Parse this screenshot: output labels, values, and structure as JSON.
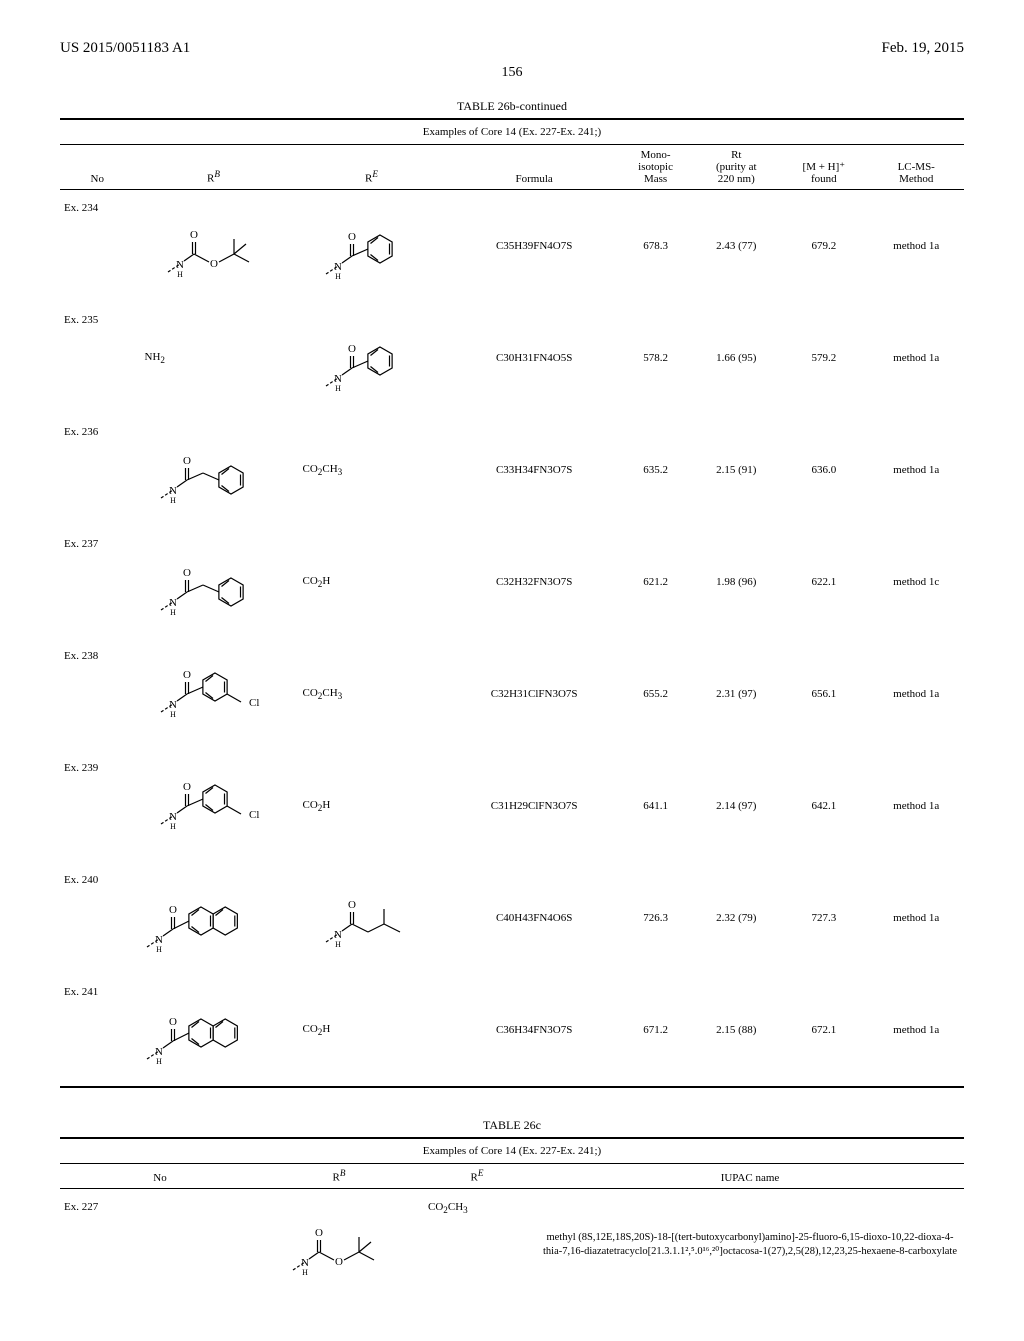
{
  "header": {
    "left": "US 2015/0051183 A1",
    "right": "Feb. 19, 2015"
  },
  "page_number": "156",
  "table26b": {
    "title": "TABLE 26b-continued",
    "subtitle": "Examples of Core 14 (Ex. 227-Ex. 241;)",
    "columns": {
      "no": "No",
      "rb": "R",
      "rb_sup": "B",
      "re": "R",
      "re_sup": "E",
      "formula": "Formula",
      "mass": "Mono-\nisotopic\nMass",
      "rt": "Rt\n(purity at\n220 nm)",
      "mh": "[M + H]⁺\nfound",
      "method": "LC-MS-\nMethod"
    },
    "rows": [
      {
        "no": "Ex. 234",
        "rb_type": "struct_boc",
        "re_type": "struct_benzamide",
        "formula": "C35H39FN4O7S",
        "mass": "678.3",
        "rt": "2.43 (77)",
        "mh": "679.2",
        "method": "method 1a"
      },
      {
        "no": "Ex. 235",
        "rb_text": "NH₂",
        "re_type": "struct_benzamide",
        "formula": "C30H31FN4O5S",
        "mass": "578.2",
        "rt": "1.66 (95)",
        "mh": "579.2",
        "method": "method 1a"
      },
      {
        "no": "Ex. 236",
        "rb_type": "struct_phenylacetamide",
        "re_text": "CO₂CH₃",
        "formula": "C33H34FN3O7S",
        "mass": "635.2",
        "rt": "2.15 (91)",
        "mh": "636.0",
        "method": "method 1a"
      },
      {
        "no": "Ex. 237",
        "rb_type": "struct_phenylacetamide",
        "re_text": "CO₂H",
        "formula": "C32H32FN3O7S",
        "mass": "621.2",
        "rt": "1.98 (96)",
        "mh": "622.1",
        "method": "method 1c"
      },
      {
        "no": "Ex. 238",
        "rb_type": "struct_chlorobenzamide",
        "re_text": "CO₂CH₃",
        "formula": "C32H31ClFN3O7S",
        "mass": "655.2",
        "rt": "2.31 (97)",
        "mh": "656.1",
        "method": "method 1a"
      },
      {
        "no": "Ex. 239",
        "rb_type": "struct_chlorobenzamide",
        "re_text": "CO₂H",
        "formula": "C31H29ClFN3O7S",
        "mass": "641.1",
        "rt": "2.14 (97)",
        "mh": "642.1",
        "method": "method 1a"
      },
      {
        "no": "Ex. 240",
        "rb_type": "struct_naphthamide",
        "re_type": "struct_isobutylamide",
        "formula": "C40H43FN4O6S",
        "mass": "726.3",
        "rt": "2.32 (79)",
        "mh": "727.3",
        "method": "method 1a"
      },
      {
        "no": "Ex. 241",
        "rb_type": "struct_naphthamide",
        "re_text": "CO₂H",
        "formula": "C36H34FN3O7S",
        "mass": "671.2",
        "rt": "2.15 (88)",
        "mh": "672.1",
        "method": "method 1a"
      }
    ]
  },
  "table26c": {
    "title": "TABLE 26c",
    "subtitle": "Examples of Core 14 (Ex. 227-Ex. 241;)",
    "columns": {
      "no": "No",
      "rb": "R",
      "rb_sup": "B",
      "re": "R",
      "re_sup": "E",
      "iupac": "IUPAC name"
    },
    "rows": [
      {
        "no": "Ex. 227",
        "rb_type": "struct_boc",
        "re_text": "CO₂CH₃",
        "iupac": "methyl (8S,12E,18S,20S)-18-[(tert-butoxycarbonyl)amino]-25-fluoro-6,15-dioxo-10,22-dioxa-4-thia-7,16-diazatetracyclo[21.3.1.1²,⁵.0¹⁶,²⁰]octacosa-1(27),2,5(28),12,23,25-hexaene-8-carboxylate"
      }
    ]
  },
  "style": {
    "stroke": "#000000",
    "stroke_width": 1.2,
    "dash": "3,2"
  }
}
